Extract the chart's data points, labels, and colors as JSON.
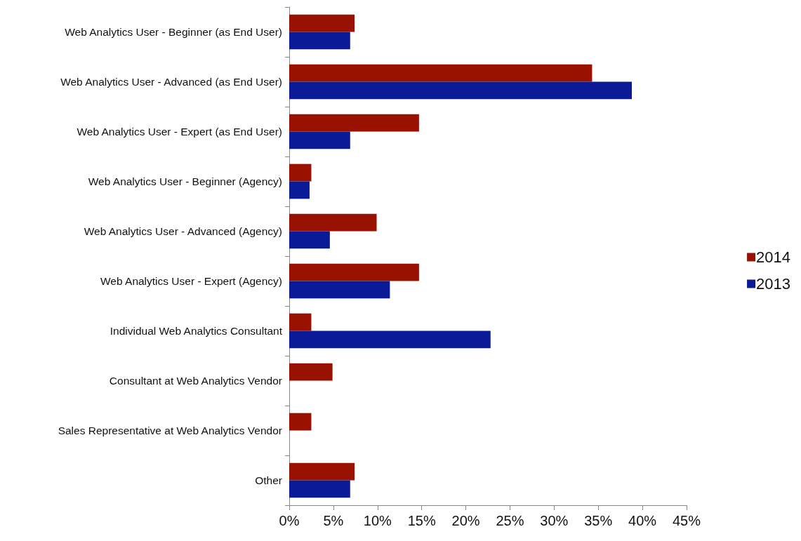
{
  "chart_data": {
    "type": "bar",
    "orientation": "horizontal",
    "categories": [
      "Web Analytics User - Beginner (as End User)",
      "Web Analytics User - Advanced (as End User)",
      "Web Analytics User - Expert (as End User)",
      "Web Analytics User - Beginner (Agency)",
      "Web Analytics User - Advanced (Agency)",
      "Web Analytics User - Expert (Agency)",
      "Individual Web Analytics Consultant",
      "Consultant at Web Analytics Vendor",
      "Sales Representative at Web Analytics Vendor",
      "Other"
    ],
    "series": [
      {
        "name": "2014",
        "color": "#991100",
        "values": [
          7.4,
          34.3,
          14.7,
          2.5,
          9.9,
          14.7,
          2.5,
          4.9,
          2.5,
          7.4
        ]
      },
      {
        "name": "2013",
        "color": "#0b1a96",
        "values": [
          6.9,
          38.8,
          6.9,
          2.3,
          4.6,
          11.4,
          22.8,
          0,
          0,
          6.9
        ]
      }
    ],
    "xlim": [
      0,
      45
    ],
    "xticks": [
      {
        "value": 0,
        "label": "0%"
      },
      {
        "value": 5,
        "label": "5%"
      },
      {
        "value": 10,
        "label": "10%"
      },
      {
        "value": 15,
        "label": "15%"
      },
      {
        "value": 20,
        "label": "20%"
      },
      {
        "value": 25,
        "label": "25%"
      },
      {
        "value": 30,
        "label": "30%"
      },
      {
        "value": 35,
        "label": "35%"
      },
      {
        "value": 40,
        "label": "40%"
      },
      {
        "value": 45,
        "label": "45%"
      }
    ],
    "grid": false,
    "legend": "right"
  }
}
